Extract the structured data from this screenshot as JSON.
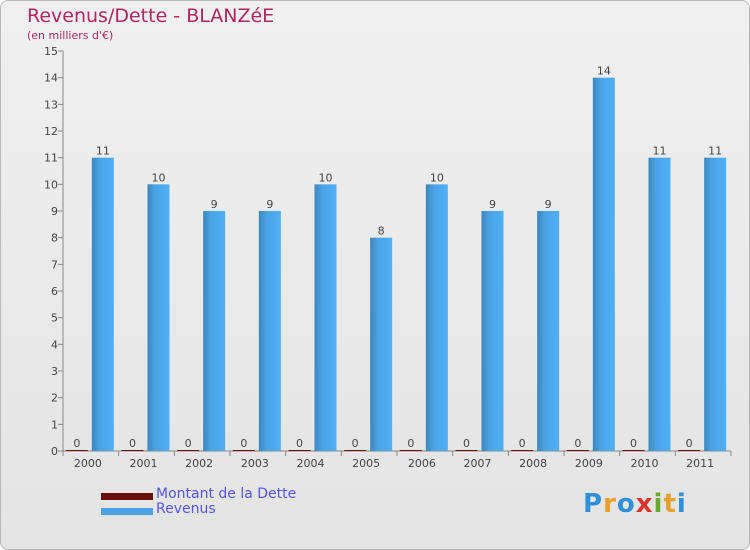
{
  "chart_data": {
    "type": "bar",
    "title": "Revenus/Dette - BLANZéE",
    "subtitle": "(en milliers d'€)",
    "xlabel": "",
    "ylabel": "",
    "ylim": [
      0,
      15
    ],
    "yticks": [
      "0",
      "1",
      "2",
      "3",
      "4",
      "5",
      "6",
      "7",
      "8",
      "9",
      "10",
      "11",
      "12",
      "13",
      "14",
      "15"
    ],
    "categories": [
      "2000",
      "2001",
      "2002",
      "2003",
      "2004",
      "2005",
      "2006",
      "2007",
      "2008",
      "2009",
      "2010",
      "2011"
    ],
    "series": [
      {
        "name": "Montant de la Dette",
        "color": "#6b0e0e",
        "values": [
          0,
          0,
          0,
          0,
          0,
          0,
          0,
          0,
          0,
          0,
          0,
          0
        ]
      },
      {
        "name": "Revenus",
        "color": "#4aa3e6",
        "values": [
          11,
          10,
          9,
          9,
          10,
          8,
          10,
          9,
          9,
          14,
          11,
          11
        ]
      }
    ],
    "grid": false,
    "legend_position": "bottom-left"
  },
  "logo": {
    "text": "Proxiti"
  }
}
